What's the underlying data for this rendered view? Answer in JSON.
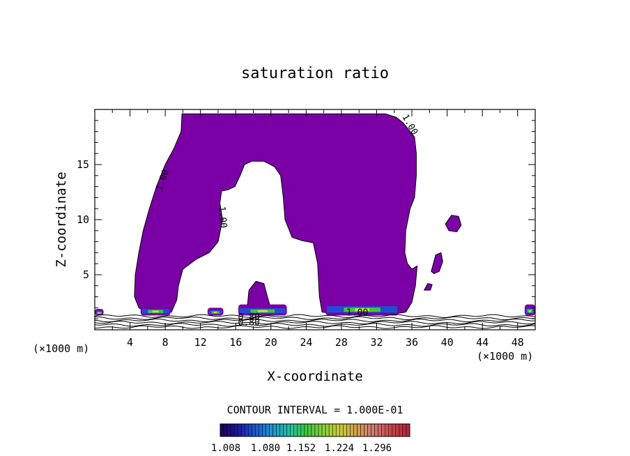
{
  "chart_data": {
    "type": "contour",
    "title": "saturation ratio",
    "xlabel": "X-coordinate",
    "ylabel": "Z-coordinate",
    "x_unit_label": "(×1000 m)",
    "z_unit_label": "(×1000 m)",
    "xlim": [
      0,
      50
    ],
    "ylim": [
      0,
      20
    ],
    "xticks": [
      4,
      8,
      12,
      16,
      20,
      24,
      28,
      32,
      36,
      40,
      44,
      48
    ],
    "yticks": [
      5,
      10,
      15
    ],
    "contour_interval_text": "CONTOUR INTERVAL = 1.000E-01",
    "contour_labels": [
      {
        "text": "1.00",
        "x": 8.0,
        "z": 13.5,
        "rot": -70
      },
      {
        "text": "1.00",
        "x": 14.2,
        "z": 10.2,
        "rot": 85
      },
      {
        "text": "1.00",
        "x": 35.5,
        "z": 18.5,
        "rot": 60
      },
      {
        "text": "1.00",
        "x": 29.8,
        "z": 1.3,
        "rot": 0
      },
      {
        "text": "0.80",
        "x": 17.5,
        "z": 0.9,
        "rot": 0
      },
      {
        "text": "0.80",
        "x": 17.5,
        "z": 0.4,
        "rot": 0
      }
    ],
    "supersaturated_regions": [
      {
        "name": "main-plume",
        "fill": "#7a00a6",
        "outline": [
          [
            6,
            1.5
          ],
          [
            5,
            2
          ],
          [
            4.5,
            3
          ],
          [
            4.6,
            5
          ],
          [
            5,
            7
          ],
          [
            5.5,
            9
          ],
          [
            6.2,
            11
          ],
          [
            7,
            13
          ],
          [
            8,
            15
          ],
          [
            9,
            16.5
          ],
          [
            9.8,
            18
          ],
          [
            9.9,
            19.6
          ],
          [
            28,
            19.6
          ],
          [
            33,
            19.6
          ],
          [
            34.2,
            19.3
          ],
          [
            35,
            18.8
          ],
          [
            35.8,
            18
          ],
          [
            36.3,
            17.5
          ],
          [
            36.5,
            16
          ],
          [
            36.5,
            14
          ],
          [
            36.3,
            12
          ],
          [
            35.8,
            11
          ],
          [
            35.3,
            9
          ],
          [
            35.2,
            7
          ],
          [
            35.5,
            6
          ],
          [
            36,
            5.5
          ],
          [
            36.6,
            5.8
          ],
          [
            36.4,
            4
          ],
          [
            36,
            2.5
          ],
          [
            35.3,
            1.6
          ],
          [
            34.5,
            1.5
          ],
          [
            33,
            1.4
          ],
          [
            29.5,
            1.5
          ],
          [
            27,
            1.5
          ],
          [
            25.8,
            1.6
          ],
          [
            25.5,
            3
          ],
          [
            25.3,
            6
          ],
          [
            24.8,
            7.9
          ],
          [
            23.5,
            8.1
          ],
          [
            22.4,
            8.4
          ],
          [
            21.6,
            10
          ],
          [
            21.4,
            12
          ],
          [
            21.1,
            14
          ],
          [
            20.4,
            14.8
          ],
          [
            19.2,
            15.3
          ],
          [
            17.8,
            15.3
          ],
          [
            17,
            15
          ],
          [
            16.5,
            14
          ],
          [
            15.9,
            13
          ],
          [
            15.1,
            12.7
          ],
          [
            14.4,
            12.6
          ],
          [
            14.2,
            11.5
          ],
          [
            14.5,
            10
          ],
          [
            14,
            8
          ],
          [
            13,
            7
          ],
          [
            11.5,
            6.4
          ],
          [
            10,
            5.5
          ],
          [
            9.5,
            4
          ],
          [
            9.3,
            2.7
          ],
          [
            8.7,
            1.6
          ],
          [
            7.5,
            1.5
          ]
        ]
      },
      {
        "name": "isolated-cell-high",
        "fill": "#7a00a6",
        "outline": [
          [
            39.8,
            9.6
          ],
          [
            40.5,
            10.4
          ],
          [
            41.3,
            10.3
          ],
          [
            41.6,
            9.5
          ],
          [
            41.1,
            8.9
          ],
          [
            40.2,
            9.0
          ]
        ]
      },
      {
        "name": "isolated-cell-mid",
        "fill": "#7a00a6",
        "outline": [
          [
            38.2,
            5.3
          ],
          [
            38.7,
            6.8
          ],
          [
            39.3,
            7.0
          ],
          [
            39.5,
            6.2
          ],
          [
            39.1,
            5.3
          ],
          [
            38.5,
            5.1
          ]
        ]
      },
      {
        "name": "isolated-cell-low",
        "fill": "#7a00a6",
        "outline": [
          [
            17.3,
            2.0
          ],
          [
            17.5,
            3.6
          ],
          [
            18.3,
            4.4
          ],
          [
            19.2,
            4.2
          ],
          [
            19.6,
            3.0
          ],
          [
            20.0,
            1.9
          ],
          [
            19.0,
            1.6
          ]
        ]
      },
      {
        "name": "isolated-cell-tiny",
        "fill": "#7a00a6",
        "outline": [
          [
            37.4,
            3.6
          ],
          [
            37.8,
            4.2
          ],
          [
            38.3,
            4.1
          ],
          [
            38.1,
            3.6
          ]
        ]
      }
    ],
    "surface_patches": [
      {
        "x0": 5.2,
        "x1": 8.6,
        "z0": 1.3,
        "z1": 2.2
      },
      {
        "x0": 12.8,
        "x1": 14.6,
        "z0": 1.3,
        "z1": 2.0
      },
      {
        "x0": 16.3,
        "x1": 21.8,
        "z0": 1.3,
        "z1": 2.3
      },
      {
        "x0": 26.2,
        "x1": 34.5,
        "z0": 1.3,
        "z1": 2.6
      },
      {
        "x0": 0,
        "x1": 1.0,
        "z0": 1.3,
        "z1": 1.9
      },
      {
        "x0": 48.8,
        "x1": 50,
        "z0": 1.3,
        "z1": 2.3
      }
    ],
    "colorbar": {
      "ticks": [
        "1.008",
        "1.080",
        "1.152",
        "1.224",
        "1.296"
      ],
      "colors": [
        "#20005a",
        "#1a1aa6",
        "#1e5ad2",
        "#1e9ad2",
        "#22c0a0",
        "#3cc83c",
        "#8cd23c",
        "#c8c83c",
        "#d2a050",
        "#d27878",
        "#c84646",
        "#b4283c"
      ]
    }
  }
}
